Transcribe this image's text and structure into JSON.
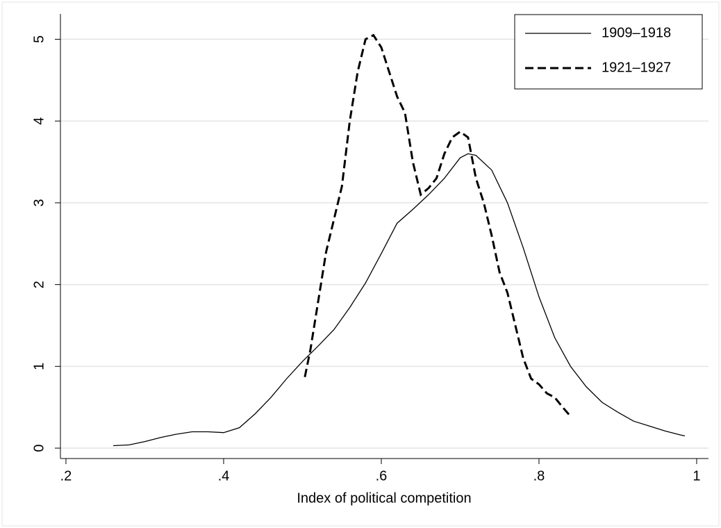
{
  "chart_data": {
    "type": "line",
    "x_label": "Index of political competition",
    "xlim": [
      0.193,
      1.015
    ],
    "ylim": [
      -0.127,
      5.31
    ],
    "xticks": [
      {
        "value": 0.2,
        "label": ".2"
      },
      {
        "value": 0.4,
        "label": ".4"
      },
      {
        "value": 0.6,
        "label": ".6"
      },
      {
        "value": 0.8,
        "label": ".8"
      },
      1
    ],
    "yticks": [
      0,
      1,
      2,
      3,
      4,
      5
    ],
    "grid": true,
    "legend": "upper right",
    "series": [
      {
        "name": "1909–1918",
        "color": "#000000",
        "linestyle": "solid",
        "x": [
          0.26,
          0.28,
          0.3,
          0.32,
          0.34,
          0.36,
          0.38,
          0.4,
          0.42,
          0.44,
          0.46,
          0.48,
          0.5,
          0.52,
          0.54,
          0.56,
          0.58,
          0.6,
          0.62,
          0.64,
          0.66,
          0.68,
          0.7,
          0.71,
          0.72,
          0.74,
          0.76,
          0.78,
          0.8,
          0.82,
          0.84,
          0.86,
          0.88,
          0.9,
          0.92,
          0.94,
          0.96,
          0.98,
          0.985
        ],
        "values": [
          0.03,
          0.04,
          0.08,
          0.13,
          0.17,
          0.2,
          0.2,
          0.19,
          0.25,
          0.42,
          0.62,
          0.85,
          1.06,
          1.25,
          1.45,
          1.72,
          2.02,
          2.38,
          2.75,
          2.92,
          3.1,
          3.3,
          3.55,
          3.6,
          3.58,
          3.4,
          3.0,
          2.45,
          1.85,
          1.35,
          1.0,
          0.75,
          0.56,
          0.44,
          0.33,
          0.27,
          0.21,
          0.16,
          0.15
        ]
      },
      {
        "name": "1921–1927",
        "color": "#000000",
        "linestyle": "dashed",
        "x": [
          0.503,
          0.51,
          0.52,
          0.53,
          0.54,
          0.55,
          0.56,
          0.57,
          0.58,
          0.59,
          0.6,
          0.61,
          0.62,
          0.63,
          0.64,
          0.65,
          0.66,
          0.67,
          0.68,
          0.69,
          0.7,
          0.71,
          0.72,
          0.73,
          0.74,
          0.75,
          0.76,
          0.77,
          0.78,
          0.79,
          0.8,
          0.81,
          0.82,
          0.83,
          0.84
        ],
        "values": [
          0.87,
          1.2,
          1.8,
          2.4,
          2.8,
          3.2,
          4.0,
          4.6,
          5.0,
          5.05,
          4.9,
          4.6,
          4.3,
          4.1,
          3.5,
          3.1,
          3.18,
          3.3,
          3.6,
          3.8,
          3.87,
          3.8,
          3.3,
          3.0,
          2.6,
          2.15,
          1.9,
          1.5,
          1.1,
          0.85,
          0.78,
          0.67,
          0.62,
          0.5,
          0.39
        ]
      }
    ]
  }
}
